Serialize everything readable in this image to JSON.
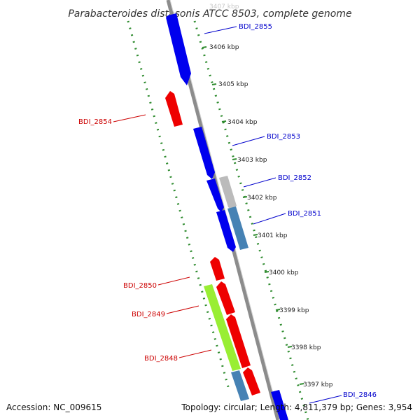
{
  "header": {
    "title": "Parabacteroides distasonis ATCC 8503, complete genome"
  },
  "footer": {
    "accession": "Accession: NC_009615",
    "summary": "Topology: circular; Length: 4,811,379 bp; Genes: 3,954"
  },
  "map": {
    "backbone_color": "#8c8c8c",
    "ruler_color": "#2e8b2e",
    "faded_tick_label": "3407 kbp",
    "ticks": [
      {
        "kbp": 3407,
        "label": ""
      },
      {
        "kbp": 3406,
        "label": "3406 kbp"
      },
      {
        "kbp": 3405,
        "label": "3405 kbp"
      },
      {
        "kbp": 3404,
        "label": "3404 kbp"
      },
      {
        "kbp": 3403,
        "label": "3403 kbp"
      },
      {
        "kbp": 3402,
        "label": "3402 kbp"
      },
      {
        "kbp": 3401,
        "label": "3401 kbp"
      },
      {
        "kbp": 3400,
        "label": "3400 kbp"
      },
      {
        "kbp": 3399,
        "label": "3399 kbp"
      },
      {
        "kbp": 3398,
        "label": "3398 kbp"
      },
      {
        "kbp": 3397,
        "label": "3397 kbp"
      }
    ],
    "genes": [
      {
        "id": "BDI_2855",
        "strand": "+",
        "color": "#0000ee",
        "label_color": "#0000cc"
      },
      {
        "id": "BDI_2854",
        "strand": "-",
        "color": "#ee0000",
        "label_color": "#cc0000"
      },
      {
        "id": "BDI_2853",
        "strand": "+",
        "color": "#0000ee",
        "label_color": "#0000cc"
      },
      {
        "id": "BDI_2852",
        "strand": "+",
        "color": "#bbbbbb",
        "label_color": "#0000cc"
      },
      {
        "id": "BDI_2851",
        "strand": "+",
        "color": "#4682b4",
        "label_color": "#0000cc"
      },
      {
        "id": "BDI_2850",
        "strand": "-",
        "color": "#ee0000",
        "label_color": "#cc0000"
      },
      {
        "id": "BDI_2849",
        "strand": "-",
        "color": "#99ee33",
        "label_color": "#cc0000"
      },
      {
        "id": "BDI_2848",
        "strand": "-",
        "color": "#ee0000",
        "label_color": "#cc0000"
      },
      {
        "id": "BDI_2846",
        "strand": "+",
        "color": "#0000ee",
        "label_color": "#0000cc"
      }
    ]
  }
}
